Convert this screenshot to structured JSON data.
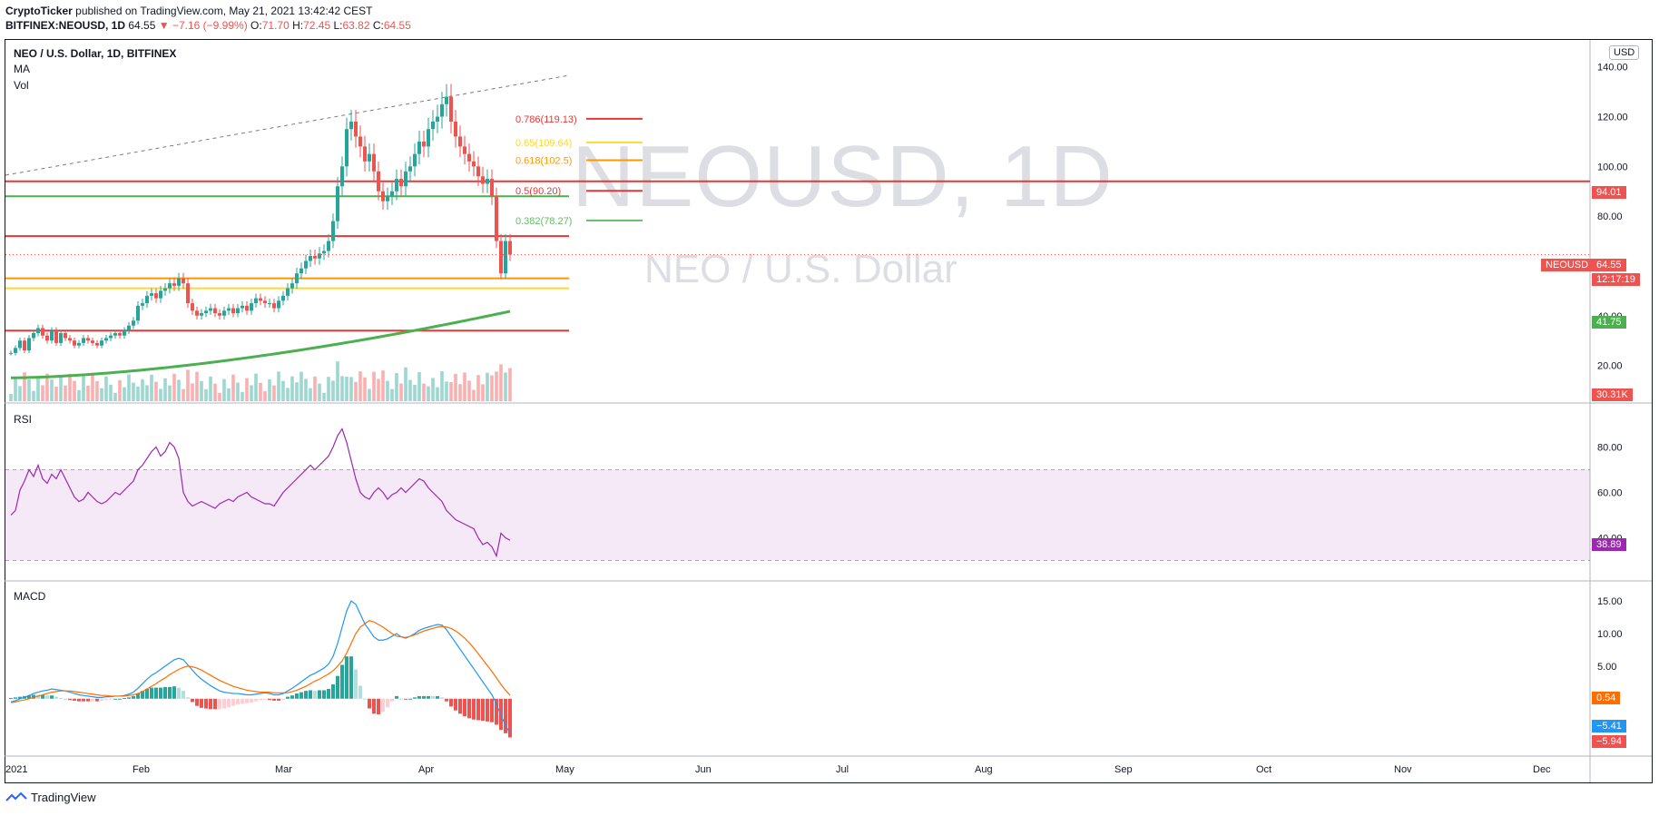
{
  "header": {
    "publisher": "CryptoTicker",
    "published_text": "published on TradingView.com, May 21, 2021 13:42:42 CEST",
    "symbol": "BITFINEX:NEOUSD, 1D",
    "last": "64.55",
    "arrow": "▼",
    "change": "−7.16 (−9.99%)",
    "o_label": "O:",
    "o": "71.70",
    "h_label": "H:",
    "h": "72.45",
    "l_label": "L:",
    "l": "63.82",
    "c_label": "C:",
    "c": "64.55"
  },
  "legend": {
    "title": "NEO / U.S. Dollar, 1D, BITFINEX",
    "ma": "MA",
    "vol": "Vol",
    "rsi": "RSI",
    "macd": "MACD",
    "currency": "USD"
  },
  "watermark": {
    "symbol": "NEOUSD, 1D",
    "name": "NEO / U.S. Dollar"
  },
  "tags": {
    "resistance": "94.01",
    "symbol": "NEOUSD",
    "price": "64.55",
    "countdown": "12:17:19",
    "ma": "41.75",
    "volume": "30.31K",
    "rsi": "38.89",
    "macd_signal": "0.54",
    "macd_line": "−5.41",
    "macd_hist": "−5.94"
  },
  "fib_labels": [
    "0.786(119.13)",
    "0.65(109.64)",
    "0.618(102.5)",
    "0.5(90.20)",
    "0.382(78.27)"
  ],
  "footer": {
    "brand": "TradingView"
  },
  "colors": {
    "up": "#26a69a",
    "down": "#ef5350",
    "ma": "#4caf50",
    "rsi": "#9c27b0",
    "macd": "#2196f3",
    "signal": "#ff6d00"
  },
  "chart_data": [
    {
      "type": "candlestick",
      "title": "NEO / U.S. Dollar, 1D, BITFINEX",
      "x_ticks": [
        "2021",
        "Feb",
        "Mar",
        "Apr",
        "May",
        "Jun",
        "Jul",
        "Aug",
        "Sep",
        "Oct",
        "Nov",
        "Dec"
      ],
      "y_ticks": [
        "20.00",
        "40.00",
        "60.00",
        "80.00",
        "100.00",
        "120.00",
        "140.00"
      ],
      "ylim": [
        10,
        145
      ],
      "closes": [
        25,
        27,
        30,
        26,
        31,
        33,
        35,
        32,
        30,
        34,
        29,
        33,
        31,
        30,
        28,
        29,
        31,
        30,
        29,
        28,
        30,
        31,
        32,
        33,
        32,
        34,
        36,
        38,
        44,
        45,
        48,
        49,
        47,
        50,
        51,
        53,
        52,
        55,
        53,
        45,
        42,
        40,
        41,
        42,
        43,
        41,
        40,
        42,
        43,
        41,
        43,
        44,
        42,
        45,
        47,
        46,
        45,
        45,
        43,
        46,
        48,
        51,
        53,
        57,
        59,
        62,
        64,
        63,
        65,
        66,
        70,
        78,
        92,
        100,
        115,
        118,
        112,
        108,
        102,
        105,
        98,
        90,
        86,
        88,
        90,
        95,
        92,
        98,
        100,
        105,
        110,
        108,
        115,
        118,
        120,
        125,
        128,
        118,
        112,
        108,
        105,
        102,
        100,
        96,
        93,
        95,
        88,
        70,
        57,
        70,
        64.55
      ],
      "volume_last": "30.31K",
      "ma_last": 41.75,
      "horizontal_levels": [
        94.01,
        88,
        72,
        55,
        51,
        34
      ],
      "fibonacci": [
        {
          "level": 0.786,
          "price": 119.13
        },
        {
          "level": 0.65,
          "price": 109.64
        },
        {
          "level": 0.618,
          "price": 102.5
        },
        {
          "level": 0.5,
          "price": 90.2
        },
        {
          "level": 0.382,
          "price": 78.27
        }
      ]
    },
    {
      "type": "line",
      "title": "RSI",
      "y_ticks": [
        "40.00",
        "60.00",
        "80.00"
      ],
      "bands": [
        30,
        70
      ],
      "last": 38.89,
      "values": [
        50,
        52,
        61,
        65,
        70,
        67,
        72,
        66,
        64,
        68,
        66,
        70,
        66,
        62,
        58,
        56,
        57,
        60,
        58,
        56,
        55,
        56,
        58,
        60,
        59,
        61,
        63,
        65,
        70,
        72,
        75,
        78,
        80,
        76,
        78,
        82,
        80,
        75,
        60,
        56,
        54,
        55,
        56,
        55,
        54,
        53,
        55,
        56,
        57,
        56,
        58,
        59,
        60,
        58,
        57,
        56,
        55,
        55,
        54,
        57,
        60,
        62,
        64,
        66,
        68,
        70,
        72,
        70,
        72,
        74,
        76,
        80,
        85,
        88,
        82,
        74,
        66,
        60,
        58,
        57,
        60,
        62,
        60,
        57,
        59,
        60,
        62,
        60,
        62,
        64,
        66,
        65,
        62,
        60,
        58,
        56,
        52,
        50,
        48,
        47,
        46,
        45,
        44,
        40,
        37,
        38,
        36,
        32,
        42,
        40,
        38.89
      ]
    },
    {
      "type": "bar",
      "title": "MACD",
      "y_ticks": [
        "5.00",
        "10.00",
        "15.00"
      ],
      "signal_last": 0.54,
      "macd_last": -5.41,
      "histogram_last": -5.94,
      "macd": [
        -0.5,
        -0.3,
        0,
        0.2,
        0.5,
        0.8,
        1,
        1.2,
        1.3,
        1.5,
        1.4,
        1.3,
        1.2,
        1.0,
        0.8,
        0.6,
        0.5,
        0.4,
        0.3,
        0.2,
        0.2,
        0.3,
        0.3,
        0.4,
        0.4,
        0.5,
        0.7,
        1.0,
        1.6,
        2.3,
        3.0,
        3.6,
        4.0,
        4.5,
        5.0,
        5.5,
        6.0,
        6.2,
        6.0,
        5.2,
        4.4,
        3.6,
        3.0,
        2.5,
        2.0,
        1.6,
        1.2,
        1.0,
        0.9,
        0.8,
        0.8,
        0.7,
        0.6,
        0.6,
        0.7,
        0.8,
        0.9,
        0.8,
        0.6,
        0.6,
        0.8,
        1.2,
        1.6,
        2.1,
        2.6,
        3.1,
        3.6,
        3.9,
        4.3,
        4.7,
        5.3,
        6.5,
        8.5,
        11,
        13.5,
        15,
        14.5,
        13,
        11.5,
        10.5,
        9.5,
        9,
        9,
        9.2,
        9.6,
        10,
        9.5,
        9.3,
        9.6,
        10,
        10.5,
        10.8,
        11,
        11.2,
        11.4,
        11.3,
        10.6,
        9.6,
        8.6,
        7.6,
        6.6,
        5.6,
        4.6,
        3.6,
        2.6,
        1.6,
        0.6,
        -0.8,
        -2.6,
        -4,
        -5.41
      ],
      "signal": [
        -0.6,
        -0.5,
        -0.3,
        -0.2,
        0,
        0.2,
        0.4,
        0.6,
        0.8,
        1,
        1.1,
        1.2,
        1.2,
        1.2,
        1.1,
        1.0,
        0.9,
        0.8,
        0.7,
        0.6,
        0.5,
        0.5,
        0.4,
        0.4,
        0.4,
        0.4,
        0.5,
        0.6,
        0.8,
        1.1,
        1.5,
        1.9,
        2.3,
        2.8,
        3.2,
        3.7,
        4.1,
        4.5,
        4.8,
        5.0,
        4.9,
        4.7,
        4.4,
        4.0,
        3.6,
        3.2,
        2.8,
        2.5,
        2.2,
        1.9,
        1.7,
        1.5,
        1.3,
        1.2,
        1.1,
        1.0,
        1.0,
        1.0,
        0.9,
        0.9,
        0.9,
        0.9,
        1.1,
        1.3,
        1.6,
        1.9,
        2.3,
        2.7,
        3.0,
        3.4,
        3.8,
        4.3,
        5.0,
        5.8,
        7.0,
        8.5,
        10,
        11,
        11.5,
        12,
        11.8,
        11.4,
        11,
        10.5,
        10,
        9.6,
        9.5,
        9.4,
        9.6,
        9.8,
        10.1,
        10.4,
        10.6,
        10.8,
        11,
        11.1,
        11,
        10.8,
        10.4,
        9.9,
        9.3,
        8.6,
        7.8,
        6.9,
        6,
        5.1,
        4.2,
        3.2,
        2.2,
        1.3,
        0.54
      ]
    }
  ]
}
